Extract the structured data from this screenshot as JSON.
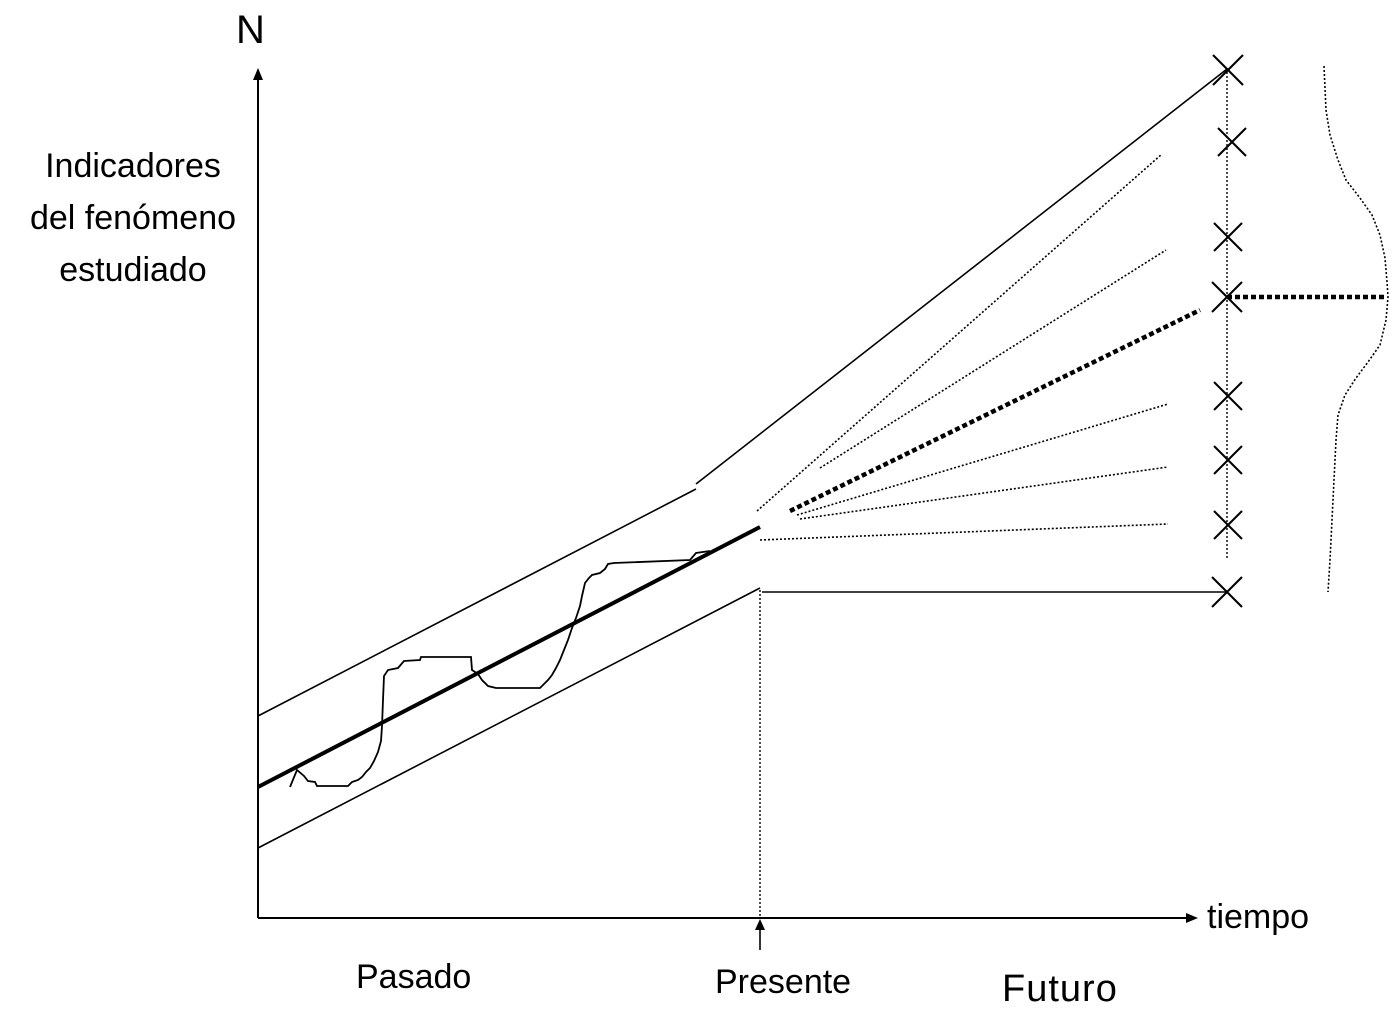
{
  "axes": {
    "y_axis_letter": "N",
    "y_axis_label": [
      "Indicadores",
      "del fenómeno",
      "estudiado"
    ],
    "x_axis_label": "tiempo"
  },
  "periods": {
    "past": "Pasado",
    "present": "Presente",
    "future": "Futuro"
  },
  "diagram": {
    "line_color": "#000000",
    "background": "#ffffff",
    "forecast_outcomes_count": 8,
    "most_likely_outcome_index": 3
  }
}
